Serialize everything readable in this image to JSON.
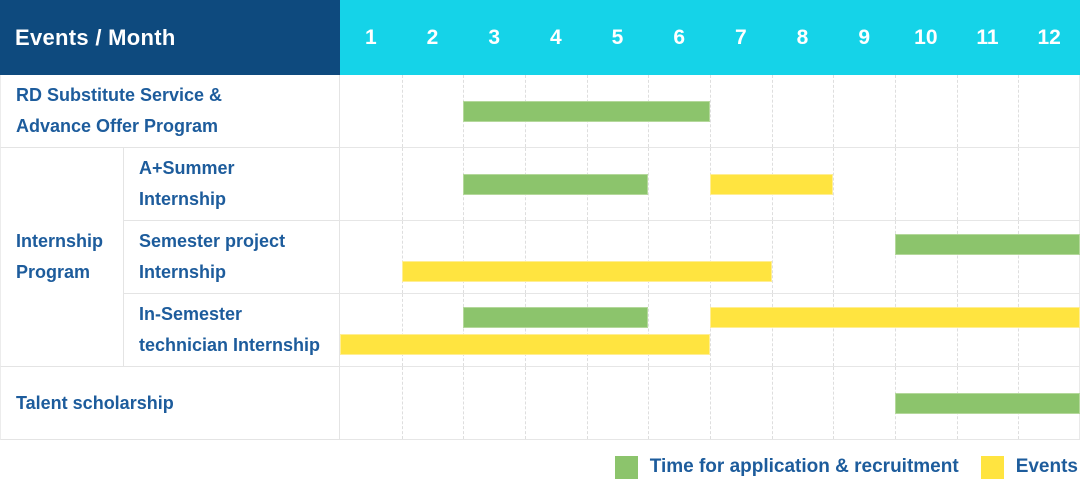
{
  "table": {
    "header": {
      "title": "Events / Month"
    },
    "months": [
      "1",
      "2",
      "3",
      "4",
      "5",
      "6",
      "7",
      "8",
      "9",
      "10",
      "11",
      "12"
    ],
    "row_labels": {
      "rd": {
        "line1": "RD Substitute Service &",
        "line2": "Advance Offer Program"
      },
      "internship_group": {
        "line1": "Internship",
        "line2": "Program"
      },
      "a_summer": {
        "line1": "A+Summer",
        "line2": "Internship"
      },
      "semester_project": {
        "line1": "Semester project",
        "line2": "Internship"
      },
      "in_semester": {
        "line1": "In-Semester",
        "line2": "technician Internship"
      },
      "talent": {
        "line1": "Talent scholarship"
      }
    }
  },
  "legend": {
    "items": [
      {
        "label": "Time for application & recruitment",
        "color": "#8cc46c",
        "border": "#b4d89b"
      },
      {
        "label": "Events",
        "color": "#ffe440",
        "border": "#ffee94"
      }
    ]
  },
  "colors": {
    "header_navy": "#0e4a7e",
    "month_strip_cyan": "#15d3e8",
    "label_text_blue": "#1d5c9c",
    "green_bar": "#8cc46c",
    "yellow_bar": "#ffe440"
  },
  "chart_data": {
    "type": "bar",
    "subtype": "gantt",
    "title": "Events / Month",
    "xlabel": "Month",
    "x_ticks": [
      1,
      2,
      3,
      4,
      5,
      6,
      7,
      8,
      9,
      10,
      11,
      12
    ],
    "x_range": [
      1,
      12
    ],
    "grid": "dashed-vertical",
    "legend_position": "bottom-right",
    "series_legend": [
      "Time for application & recruitment",
      "Events"
    ],
    "rows": [
      {
        "category": "RD Substitute Service & Advance Offer Program",
        "group": null,
        "spans": [
          {
            "series": "Time for application & recruitment",
            "start_month": 3,
            "end_month": 6,
            "lane": "center"
          }
        ]
      },
      {
        "category": "A+Summer Internship",
        "group": "Internship Program",
        "spans": [
          {
            "series": "Time for application & recruitment",
            "start_month": 3,
            "end_month": 5,
            "lane": "center"
          },
          {
            "series": "Events",
            "start_month": 7,
            "end_month": 8,
            "lane": "center"
          }
        ]
      },
      {
        "category": "Semester project Internship",
        "group": "Internship Program",
        "spans": [
          {
            "series": "Time for application & recruitment",
            "start_month": 10,
            "end_month": 12,
            "lane": "upper"
          },
          {
            "series": "Events",
            "start_month": 2,
            "end_month": 7,
            "lane": "lower"
          }
        ]
      },
      {
        "category": "In-Semester technician Internship",
        "group": "Internship Program",
        "spans": [
          {
            "series": "Time for application & recruitment",
            "start_month": 3,
            "end_month": 5,
            "lane": "upper"
          },
          {
            "series": "Events",
            "start_month": 7,
            "end_month": 12,
            "lane": "upper"
          },
          {
            "series": "Events",
            "start_month": 1,
            "end_month": 6,
            "lane": "lower"
          }
        ]
      },
      {
        "category": "Talent scholarship",
        "group": null,
        "spans": [
          {
            "series": "Time for application & recruitment",
            "start_month": 10,
            "end_month": 12,
            "lane": "center"
          }
        ]
      }
    ]
  }
}
